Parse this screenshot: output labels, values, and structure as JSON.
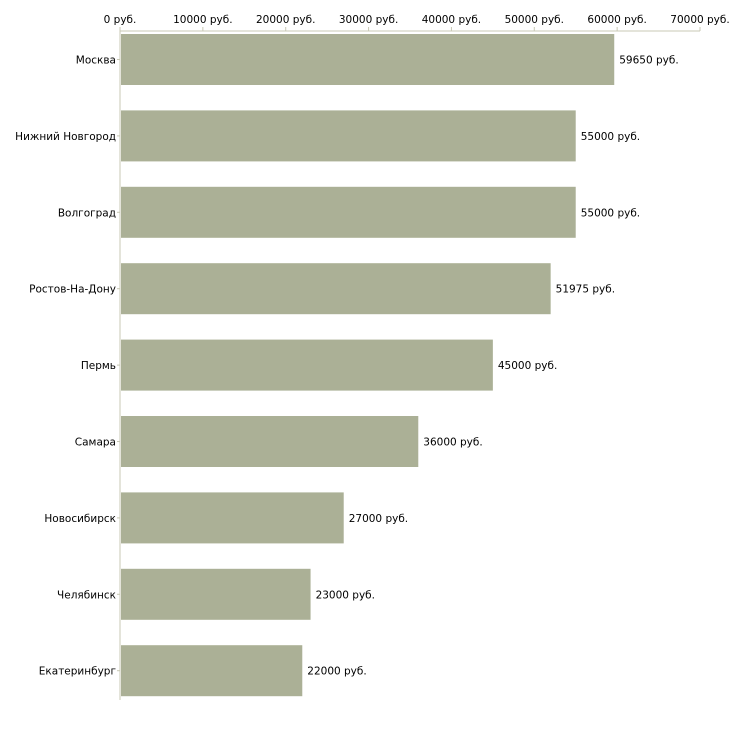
{
  "chart_data": {
    "type": "bar",
    "orientation": "horizontal",
    "title": "",
    "xlabel": "",
    "ylabel": "",
    "xlim": [
      0,
      70000
    ],
    "unit_suffix": " руб.",
    "ticks": [
      "0 руб.",
      "10000 руб.",
      "20000 руб.",
      "30000 руб.",
      "40000 руб.",
      "50000 руб.",
      "60000 руб.",
      "70000 руб."
    ],
    "tick_values": [
      0,
      10000,
      20000,
      30000,
      40000,
      50000,
      60000,
      70000
    ],
    "categories": [
      "Москва",
      "Нижний Новгород",
      "Волгоград",
      "Ростов-На-Дону",
      "Пермь",
      "Самара",
      "Новосибирск",
      "Челябинск",
      "Екатеринбург"
    ],
    "values": [
      59650,
      55000,
      55000,
      51975,
      45000,
      36000,
      27000,
      23000,
      22000
    ],
    "value_labels": [
      "59650 руб.",
      "55000 руб.",
      "55000 руб.",
      "51975 руб.",
      "45000 руб.",
      "36000 руб.",
      "27000 руб.",
      "23000 руб.",
      "22000 руб."
    ],
    "bar_color": "#abb096",
    "axis_color": "#c8c8b4",
    "grid": false,
    "legend": "none"
  }
}
